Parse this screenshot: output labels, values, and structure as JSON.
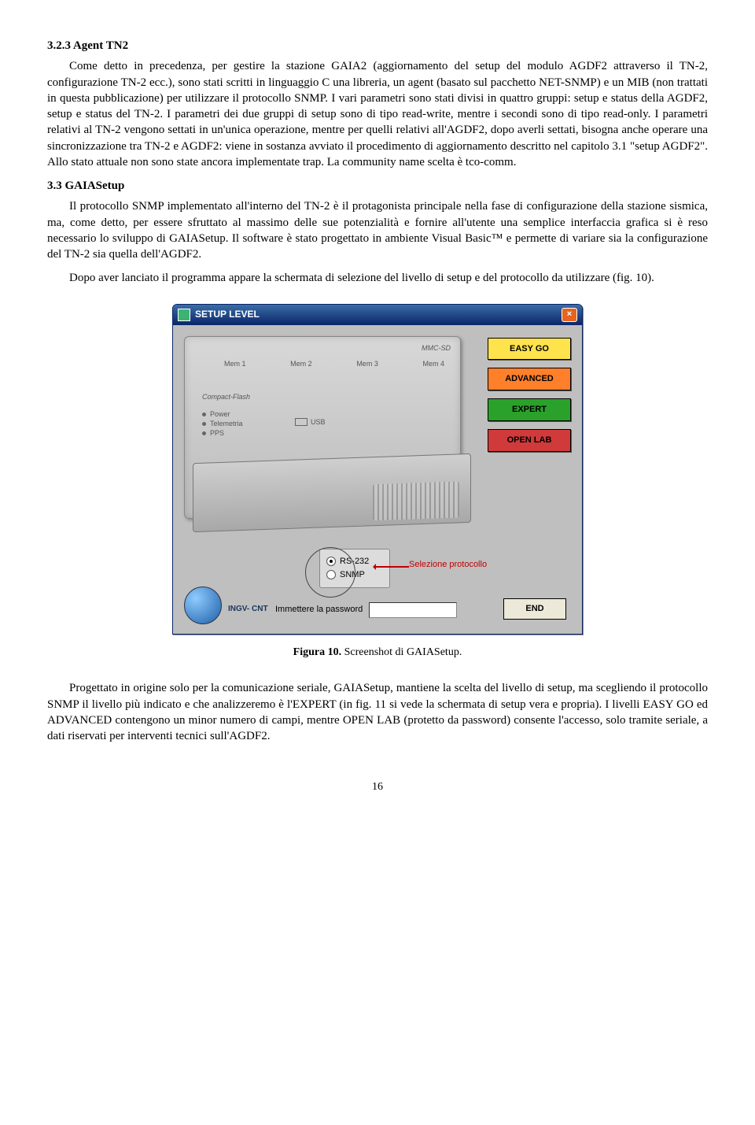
{
  "sections": {
    "s1": {
      "heading": "3.2.3 Agent TN2",
      "p1": "Come detto in precedenza, per gestire la stazione GAIA2 (aggiornamento del setup del modulo AGDF2 attraverso il TN-2, configurazione TN-2 ecc.), sono stati scritti in linguaggio C una libreria, un agent (basato sul pacchetto NET-SNMP) e un MIB (non trattati in questa pubblicazione) per utilizzare il protocollo SNMP. I vari parametri sono stati divisi in quattro gruppi: setup e status della AGDF2, setup e status del TN-2. I parametri dei due gruppi di setup sono di tipo read-write, mentre i secondi sono di tipo read-only. I parametri relativi al TN-2 vengono settati in un'unica operazione, mentre per quelli relativi all'AGDF2, dopo averli settati, bisogna anche operare una sincronizzazione tra TN-2 e AGDF2: viene in sostanza avviato il procedimento di aggiornamento descritto nel capitolo 3.1 \"setup AGDF2\". Allo stato attuale non sono state ancora implementate trap. La community name scelta è tco-comm."
    },
    "s2": {
      "heading": "3.3 GAIASetup",
      "p1": "Il protocollo SNMP implementato all'interno del TN-2 è il protagonista principale nella fase di configurazione della stazione sismica, ma, come detto, per essere sfruttato al massimo delle sue potenzialità e fornire all'utente una semplice interfaccia grafica si è reso necessario lo sviluppo di GAIASetup. Il software è stato progettato in ambiente Visual Basic™ e permette di variare sia la configurazione del TN-2 sia quella dell'AGDF2.",
      "p2": "Dopo aver lanciato il programma appare la schermata di selezione del livello di setup e del protocollo da utilizzare (fig. 10).",
      "p3": "Progettato in origine solo per la comunicazione seriale, GAIASetup, mantiene la scelta del livello di setup, ma scegliendo il protocollo SNMP il livello più indicato e che analizzeremo è l'EXPERT (in fig. 11 si vede la schermata di setup vera e propria). I livelli EASY GO ed ADVANCED contengono un minor numero di campi, mentre OPEN LAB (protetto da password) consente l'accesso, solo tramite seriale, a dati riservati per interventi tecnici sull'AGDF2."
    }
  },
  "figure": {
    "window_title": "SETUP LEVEL",
    "close_glyph": "×",
    "device": {
      "top_label": "MMC-SD",
      "mem_labels": [
        "Mem 1",
        "Mem 2",
        "Mem 3",
        "Mem 4"
      ],
      "cf_label": "Compact-Flash",
      "leds": [
        "Power",
        "Telemetria",
        "PPS"
      ],
      "usb_label": "USB"
    },
    "level_buttons": [
      {
        "label": "EASY GO",
        "bg": "#ffe34d"
      },
      {
        "label": "ADVANCED",
        "bg": "#ff7f2a"
      },
      {
        "label": "EXPERT",
        "bg": "#2aa12a"
      },
      {
        "label": "OPEN LAB",
        "bg": "#d13a3a"
      }
    ],
    "protocol": {
      "rs232": "RS-232",
      "snmp": "SNMP",
      "caption": "Selezione protocollo"
    },
    "ingv_label": "INGV- CNT",
    "password_label": "Immettere la password",
    "end_label": "END",
    "caption_bold": "Figura 10.",
    "caption_rest": " Screenshot di GAIASetup."
  },
  "page_number": "16",
  "colors": {
    "titlebar_grad_top": "#3a6ea5",
    "titlebar_grad_bot": "#0a246a",
    "close_btn": "#e76420",
    "client_bg": "#bfbfbf",
    "arrow_color": "#c00000"
  }
}
